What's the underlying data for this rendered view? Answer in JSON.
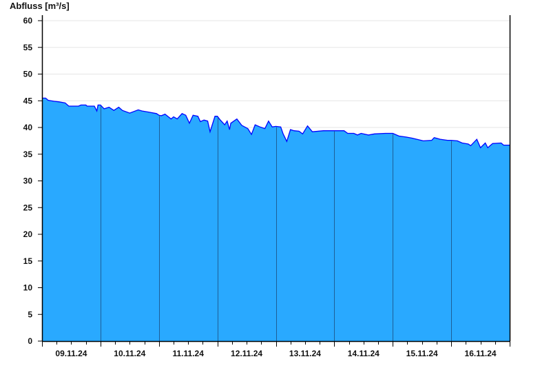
{
  "chart_data": {
    "type": "area",
    "title": "",
    "ylabel": "Abfluss [m³/s]",
    "xlabel": "",
    "ylim": [
      0,
      60
    ],
    "yticks": [
      0,
      5,
      10,
      15,
      20,
      25,
      30,
      35,
      40,
      45,
      50,
      55,
      60
    ],
    "xlim": [
      "2024-11-09T00:00",
      "2024-11-17T00:00"
    ],
    "xtick_labels": [
      "09.11.24",
      "10.11.24",
      "11.11.24",
      "12.11.24",
      "13.11.24",
      "14.11.24",
      "15.11.24",
      "16.11.24"
    ],
    "grid": true,
    "colors": {
      "fill": "#29a9ff",
      "line": "#0000ff",
      "day_separator": "#1e5e96",
      "grid": "#e6e6e6"
    },
    "points": [
      [
        "2024-11-09T00:00",
        45.5
      ],
      [
        "2024-11-09T01:30",
        45.5
      ],
      [
        "2024-11-09T02:30",
        45.1
      ],
      [
        "2024-11-09T05:00",
        44.9
      ],
      [
        "2024-11-09T07:00",
        44.8
      ],
      [
        "2024-11-09T09:30",
        44.6
      ],
      [
        "2024-11-09T11:00",
        44.0
      ],
      [
        "2024-11-09T15:00",
        44.0
      ],
      [
        "2024-11-09T16:00",
        44.2
      ],
      [
        "2024-11-09T18:00",
        44.2
      ],
      [
        "2024-11-09T18:30",
        44.0
      ],
      [
        "2024-11-09T21:30",
        44.0
      ],
      [
        "2024-11-09T22:30",
        43.1
      ],
      [
        "2024-11-09T23:00",
        44.2
      ],
      [
        "2024-11-10T00:00",
        44.2
      ],
      [
        "2024-11-10T01:30",
        43.5
      ],
      [
        "2024-11-10T03:30",
        43.8
      ],
      [
        "2024-11-10T05:30",
        43.2
      ],
      [
        "2024-11-10T07:30",
        43.8
      ],
      [
        "2024-11-10T09:00",
        43.2
      ],
      [
        "2024-11-10T12:00",
        42.7
      ],
      [
        "2024-11-10T15:30",
        43.3
      ],
      [
        "2024-11-10T17:00",
        43.1
      ],
      [
        "2024-11-10T19:30",
        42.9
      ],
      [
        "2024-11-10T23:00",
        42.6
      ],
      [
        "2024-11-11T00:00",
        42.3
      ],
      [
        "2024-11-11T01:00",
        42.2
      ],
      [
        "2024-11-11T02:30",
        42.5
      ],
      [
        "2024-11-11T05:00",
        41.6
      ],
      [
        "2024-11-11T06:00",
        42.0
      ],
      [
        "2024-11-11T07:30",
        41.6
      ],
      [
        "2024-11-11T09:30",
        42.6
      ],
      [
        "2024-11-11T11:00",
        42.3
      ],
      [
        "2024-11-11T12:30",
        40.8
      ],
      [
        "2024-11-11T14:00",
        42.3
      ],
      [
        "2024-11-11T16:00",
        42.1
      ],
      [
        "2024-11-11T17:00",
        41.1
      ],
      [
        "2024-11-11T18:30",
        41.4
      ],
      [
        "2024-11-11T20:00",
        41.2
      ],
      [
        "2024-11-11T21:00",
        39.2
      ],
      [
        "2024-11-11T23:00",
        42.1
      ],
      [
        "2024-11-12T00:00",
        42.1
      ],
      [
        "2024-11-12T01:00",
        41.5
      ],
      [
        "2024-11-12T03:00",
        40.5
      ],
      [
        "2024-11-12T04:00",
        41.2
      ],
      [
        "2024-11-12T05:00",
        39.6
      ],
      [
        "2024-11-12T05:30",
        40.8
      ],
      [
        "2024-11-12T08:00",
        41.6
      ],
      [
        "2024-11-12T10:00",
        40.4
      ],
      [
        "2024-11-12T12:30",
        39.8
      ],
      [
        "2024-11-12T14:00",
        38.7
      ],
      [
        "2024-11-12T15:30",
        40.5
      ],
      [
        "2024-11-12T17:30",
        40.1
      ],
      [
        "2024-11-12T19:30",
        39.8
      ],
      [
        "2024-11-12T21:00",
        41.2
      ],
      [
        "2024-11-12T22:30",
        40.1
      ],
      [
        "2024-11-13T00:00",
        40.2
      ],
      [
        "2024-11-13T02:00",
        40.1
      ],
      [
        "2024-11-13T03:00",
        38.8
      ],
      [
        "2024-11-13T04:30",
        37.4
      ],
      [
        "2024-11-13T06:00",
        39.6
      ],
      [
        "2024-11-13T07:30",
        39.4
      ],
      [
        "2024-11-13T09:30",
        39.3
      ],
      [
        "2024-11-13T11:00",
        38.8
      ],
      [
        "2024-11-13T13:00",
        40.3
      ],
      [
        "2024-11-13T15:00",
        39.2
      ],
      [
        "2024-11-13T19:30",
        39.4
      ],
      [
        "2024-11-14T00:00",
        39.4
      ],
      [
        "2024-11-14T04:00",
        39.4
      ],
      [
        "2024-11-14T05:30",
        38.9
      ],
      [
        "2024-11-14T08:00",
        38.9
      ],
      [
        "2024-11-14T09:30",
        38.6
      ],
      [
        "2024-11-14T11:00",
        38.9
      ],
      [
        "2024-11-14T14:00",
        38.6
      ],
      [
        "2024-11-14T16:30",
        38.8
      ],
      [
        "2024-11-14T21:00",
        38.9
      ],
      [
        "2024-11-15T00:00",
        38.9
      ],
      [
        "2024-11-15T02:30",
        38.4
      ],
      [
        "2024-11-15T05:30",
        38.2
      ],
      [
        "2024-11-15T08:00",
        38.0
      ],
      [
        "2024-11-15T12:30",
        37.5
      ],
      [
        "2024-11-15T16:00",
        37.6
      ],
      [
        "2024-11-15T17:00",
        38.1
      ],
      [
        "2024-11-15T19:30",
        37.8
      ],
      [
        "2024-11-15T22:30",
        37.6
      ],
      [
        "2024-11-16T00:00",
        37.6
      ],
      [
        "2024-11-16T02:30",
        37.5
      ],
      [
        "2024-11-16T04:30",
        37.1
      ],
      [
        "2024-11-16T07:00",
        36.9
      ],
      [
        "2024-11-16T08:00",
        36.6
      ],
      [
        "2024-11-16T10:30",
        37.8
      ],
      [
        "2024-11-16T12:00",
        36.2
      ],
      [
        "2024-11-16T14:00",
        37.1
      ],
      [
        "2024-11-16T15:00",
        36.2
      ],
      [
        "2024-11-16T17:00",
        37.0
      ],
      [
        "2024-11-16T20:30",
        37.1
      ],
      [
        "2024-11-16T21:30",
        36.7
      ],
      [
        "2024-11-16T23:45",
        36.7
      ]
    ]
  }
}
